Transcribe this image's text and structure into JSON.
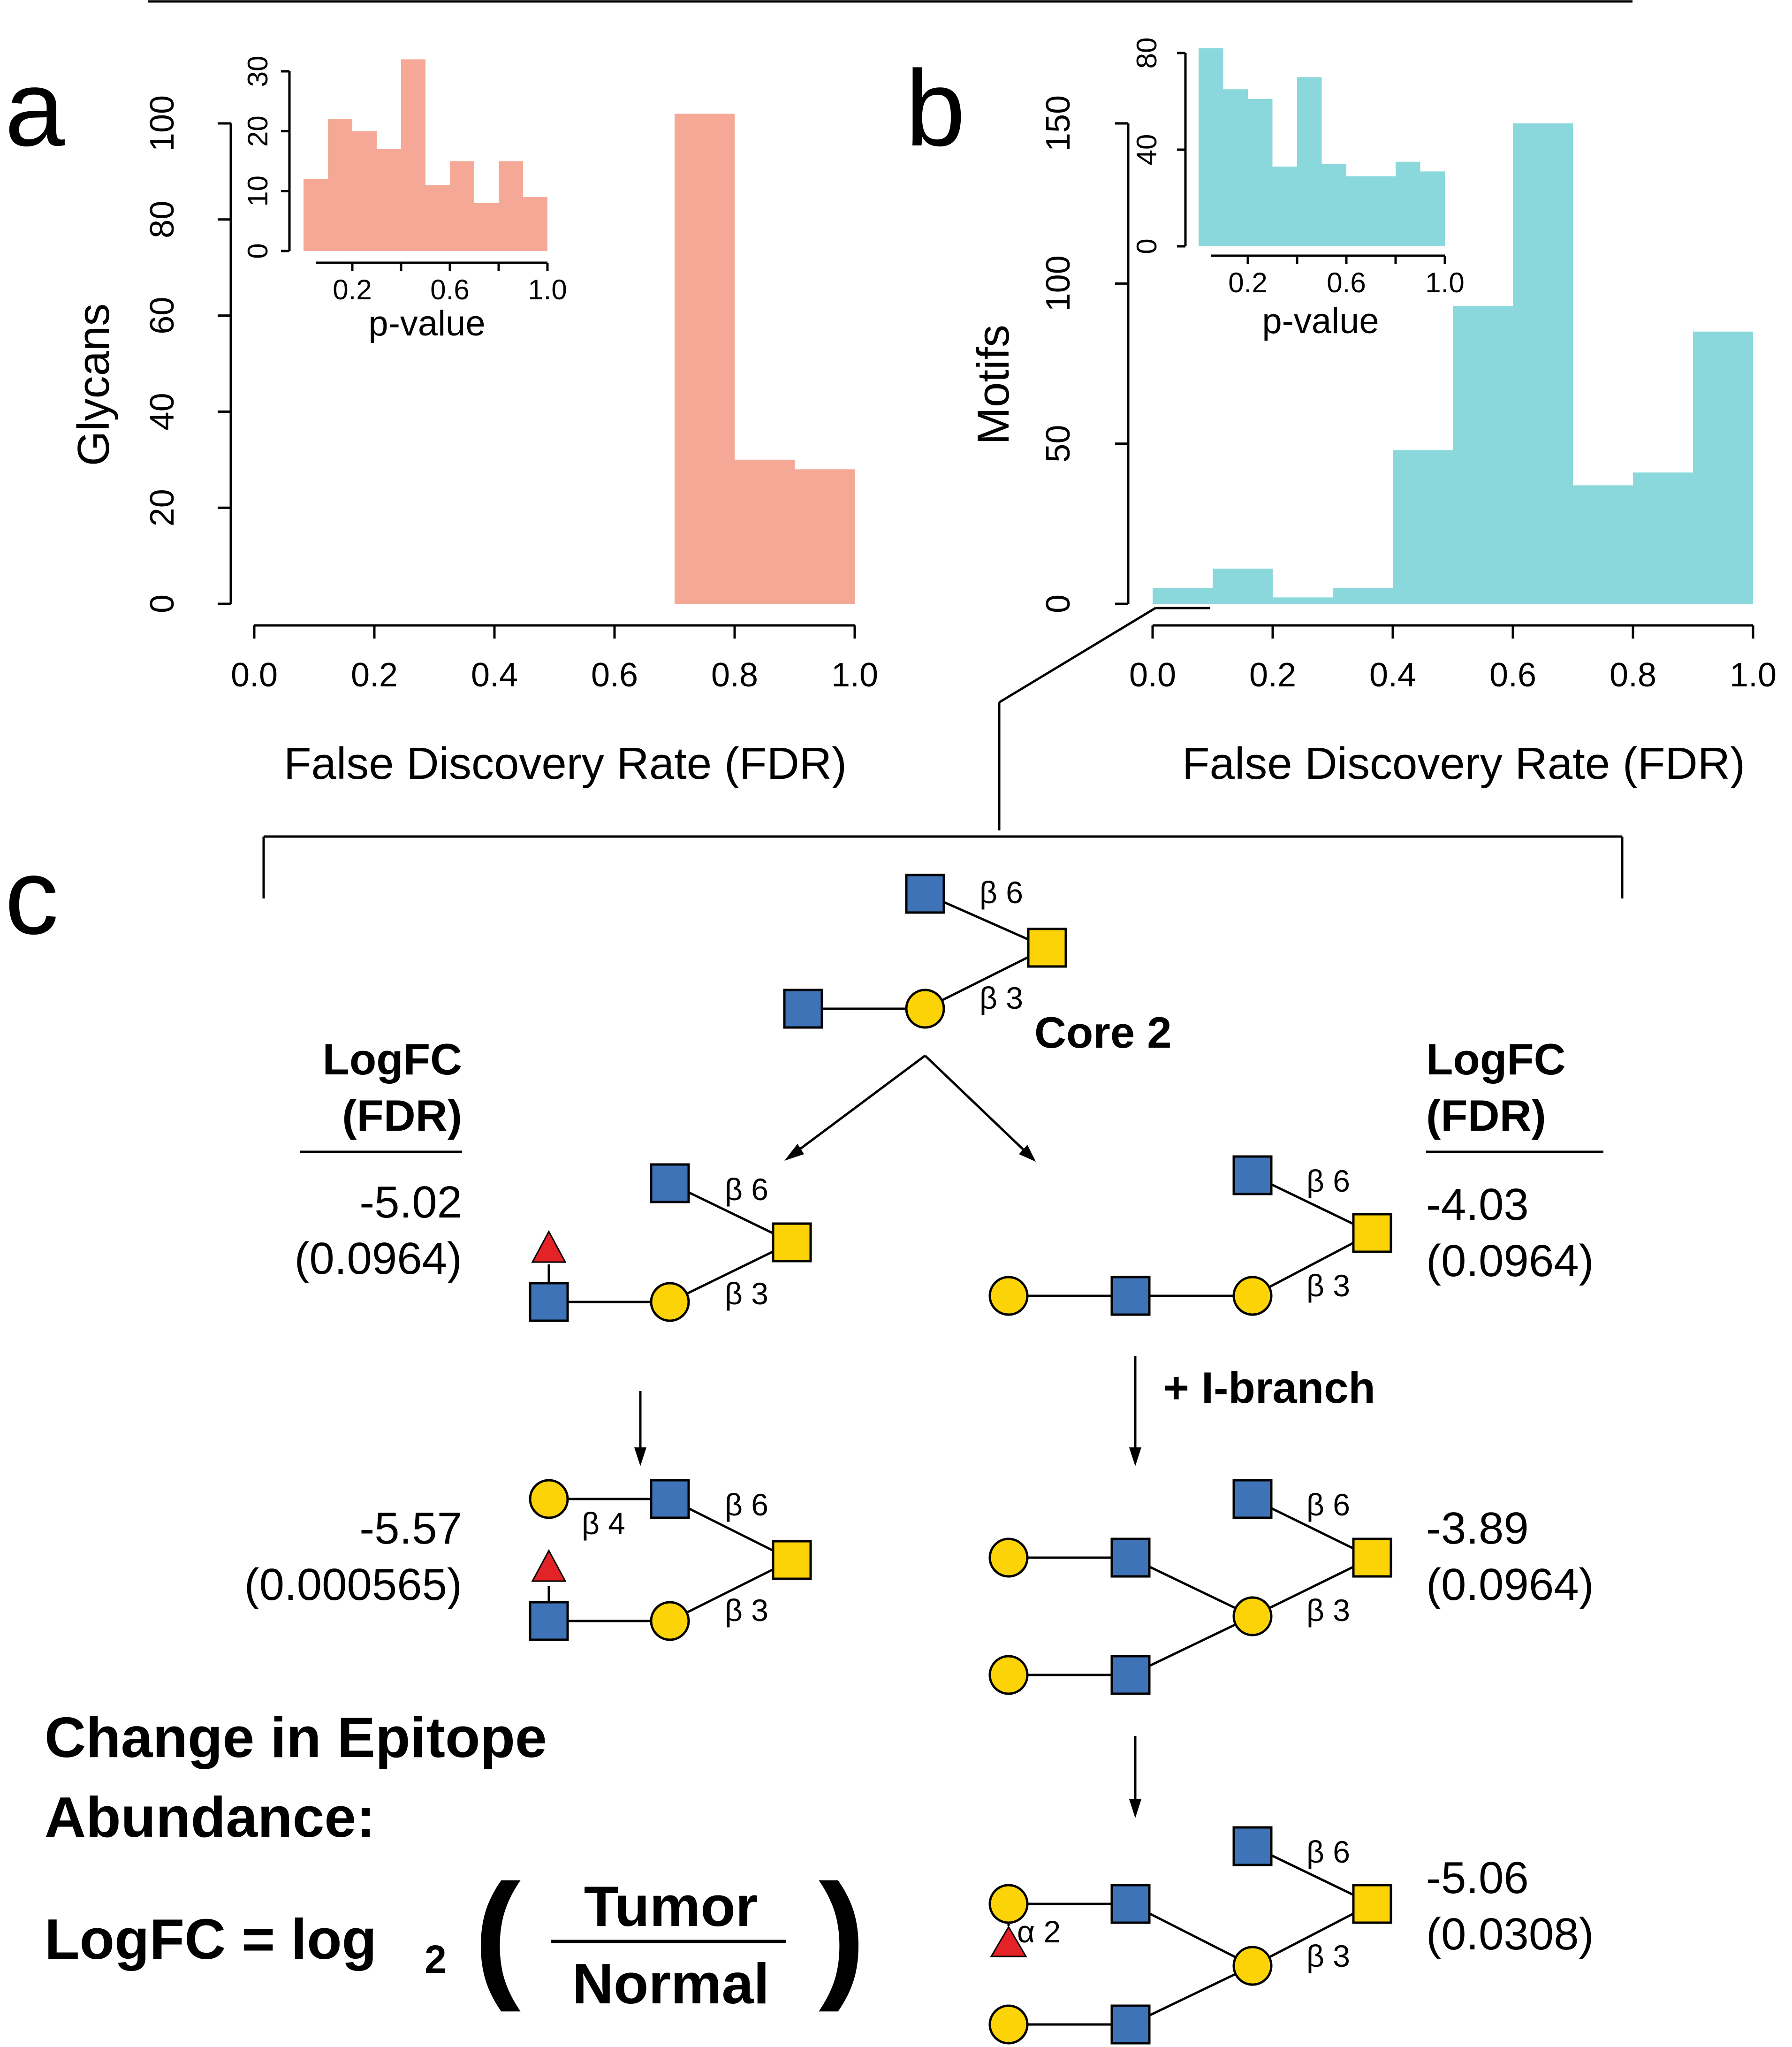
{
  "panels": {
    "a": "a",
    "b": "b",
    "c": "c"
  },
  "colors": {
    "panel_a_bars": "#f5a895",
    "panel_b_bars": "#8ad8dc",
    "glcnac": "#3f73b8",
    "galnac_gal": "#fbd307",
    "fucose": "#e42329"
  },
  "chart_data": [
    {
      "panel": "a",
      "type": "bar",
      "xlabel": "False Discovery Rate (FDR)",
      "ylabel": "Glycans",
      "xlim": [
        0.0,
        1.0
      ],
      "ylim": [
        0,
        100
      ],
      "x_ticks": [
        "0.0",
        "0.2",
        "0.4",
        "0.6",
        "0.8",
        "1.0"
      ],
      "y_ticks": [
        "0",
        "20",
        "40",
        "60",
        "80",
        "100"
      ],
      "bins": [
        {
          "x0": 0.7,
          "x1": 0.8,
          "count": 102
        },
        {
          "x0": 0.8,
          "x1": 0.9,
          "count": 30
        },
        {
          "x0": 0.9,
          "x1": 1.0,
          "count": 28
        }
      ],
      "inset": {
        "type": "bar",
        "xlabel": "p-value",
        "xlim": [
          0.0,
          1.0
        ],
        "ylim": [
          0,
          30
        ],
        "x_ticks": [
          "0.2",
          "0.6",
          "1.0"
        ],
        "y_ticks": [
          "0",
          "10",
          "20",
          "30"
        ],
        "bin_width": 0.1,
        "counts": [
          12,
          22,
          20,
          17,
          32,
          11,
          15,
          8,
          15,
          9
        ]
      }
    },
    {
      "panel": "b",
      "type": "bar",
      "xlabel": "False Discovery Rate (FDR)",
      "ylabel": "Motifs",
      "xlim": [
        0.0,
        1.0
      ],
      "ylim": [
        0,
        150
      ],
      "x_ticks": [
        "0.0",
        "0.2",
        "0.4",
        "0.6",
        "0.8",
        "1.0"
      ],
      "y_ticks": [
        "0",
        "50",
        "100",
        "150"
      ],
      "bins": [
        {
          "x0": 0.0,
          "x1": 0.1,
          "count": 5
        },
        {
          "x0": 0.1,
          "x1": 0.2,
          "count": 11
        },
        {
          "x0": 0.2,
          "x1": 0.3,
          "count": 2
        },
        {
          "x0": 0.3,
          "x1": 0.4,
          "count": 5
        },
        {
          "x0": 0.4,
          "x1": 0.5,
          "count": 48
        },
        {
          "x0": 0.5,
          "x1": 0.6,
          "count": 93
        },
        {
          "x0": 0.6,
          "x1": 0.7,
          "count": 150
        },
        {
          "x0": 0.7,
          "x1": 0.8,
          "count": 37
        },
        {
          "x0": 0.8,
          "x1": 0.9,
          "count": 41
        },
        {
          "x0": 0.9,
          "x1": 1.0,
          "count": 85
        }
      ],
      "inset": {
        "type": "bar",
        "xlabel": "p-value",
        "xlim": [
          0.0,
          1.0
        ],
        "ylim": [
          0,
          80
        ],
        "x_ticks": [
          "0.2",
          "0.6",
          "1.0"
        ],
        "y_ticks": [
          "0",
          "40",
          "80"
        ],
        "bin_width": 0.1,
        "counts": [
          82,
          65,
          61,
          33,
          70,
          34,
          29,
          29,
          35,
          31
        ]
      }
    }
  ],
  "panel_c": {
    "core_label": "Core 2",
    "header_left": [
      "LogFC",
      "(FDR)"
    ],
    "header_right": [
      "LogFC",
      "(FDR)"
    ],
    "i_branch_label": "+ I-branch",
    "linkages": {
      "b6": "β 6",
      "b3": "β 3",
      "b4": "β 4",
      "a2": "α 2"
    },
    "values": {
      "left1": [
        "-5.02",
        "(0.0964)"
      ],
      "left2": [
        "-5.57",
        "(0.000565)"
      ],
      "right1": [
        "-4.03",
        "(0.0964)"
      ],
      "right2": [
        "-3.89",
        "(0.0964)"
      ],
      "right3": [
        "-5.06",
        "(0.0308)"
      ]
    },
    "equation": {
      "line1": "Change in Epitope",
      "line2": "Abundance:",
      "prefix": "LogFC = log",
      "subscript": "2",
      "numerator": "Tumor",
      "denominator": "Normal",
      "open_paren": "(",
      "close_paren": ")"
    }
  }
}
